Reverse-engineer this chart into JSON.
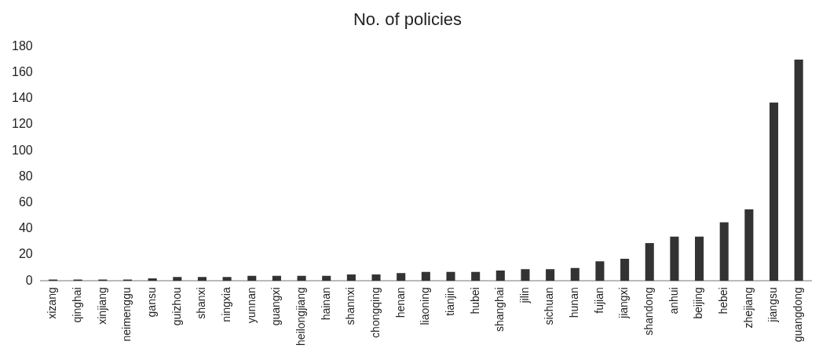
{
  "chart_data": {
    "type": "bar",
    "title": "No. of policies",
    "categories": [
      "xizang",
      "qinghai",
      "xinjiang",
      "neimenggu",
      "gansu",
      "guizhou",
      "shanxi",
      "ningxia",
      "yunnan",
      "guangxi",
      "heilongjiang",
      "hainan",
      "shannxi",
      "chongqing",
      "henan",
      "liaoning",
      "tianjin",
      "hubei",
      "shanghai",
      "jilin",
      "sichuan",
      "hunan",
      "fujian",
      "jiangxi",
      "shandong",
      "anhui",
      "beijing",
      "hebei",
      "zhejiang",
      "jiangsu",
      "guangdong"
    ],
    "values": [
      1,
      1,
      1,
      1,
      2,
      3,
      3,
      3,
      4,
      4,
      4,
      4,
      5,
      5,
      6,
      7,
      7,
      7,
      8,
      9,
      9,
      10,
      15,
      17,
      29,
      34,
      34,
      45,
      55,
      137,
      170
    ],
    "color": "#333333",
    "ylim": [
      0,
      180
    ],
    "yticks": [
      0,
      20,
      40,
      60,
      80,
      100,
      120,
      140,
      160,
      180
    ],
    "grid": false,
    "legend": false
  }
}
